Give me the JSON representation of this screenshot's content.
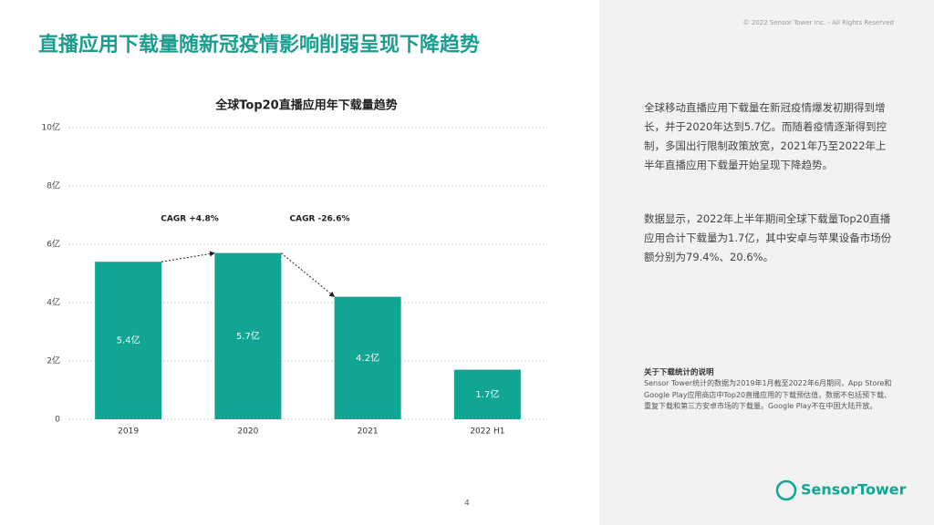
{
  "slide": {
    "title": "直播应用下载量随新冠疫情影响削弱呈现下降趋势",
    "copyright": "© 2022 Sensor Tower Inc. - All Rights Reserved",
    "page_number": "4",
    "logo": "SensorTower"
  },
  "panel": {
    "paragraphs": [
      "全球移动直播应用下载量在新冠疫情爆发初期得到增长，并于2020年达到5.7亿。而随着疫情逐渐得到控制，多国出行限制政策放宽，2021年乃至2022年上半年直播应用下载量开始呈现下降趋势。",
      "数据显示，2022年上半年期间全球下载量Top20直播应用合计下载量为1.7亿，其中安卓与苹果设备市场份额分别为79.4%、20.6%。"
    ],
    "note_title": "关于下载统计的说明",
    "note_body": "Sensor Tower统计的数据为2019年1月截至2022年6月期间，App Store和Google Play应用商店中Top20直播应用的下载预估值，数据不包括预下载、重复下载和第三方安卓市场的下载量。Google Play不在中国大陆开放。"
  },
  "chart_data": {
    "type": "bar",
    "title": "全球Top20直播应用年下载量趋势",
    "categories": [
      "2019",
      "2020",
      "2021",
      "2022 H1"
    ],
    "values": [
      5.4,
      5.7,
      4.2,
      1.7
    ],
    "value_labels": [
      "5.4亿",
      "5.7亿",
      "4.2亿",
      "1.7亿"
    ],
    "color": "#11a593",
    "ylim": [
      0,
      10
    ],
    "yticks": [
      0,
      {
        "value": 2,
        "label": "2亿"
      },
      {
        "value": 4,
        "label": "4亿"
      },
      {
        "value": 6,
        "label": "6亿"
      },
      {
        "value": 8,
        "label": "8亿"
      },
      {
        "value": 10,
        "label": "10亿"
      }
    ],
    "grid": true,
    "annotations": [
      "CAGR +4.8%",
      "CAGR -26.6%"
    ]
  }
}
